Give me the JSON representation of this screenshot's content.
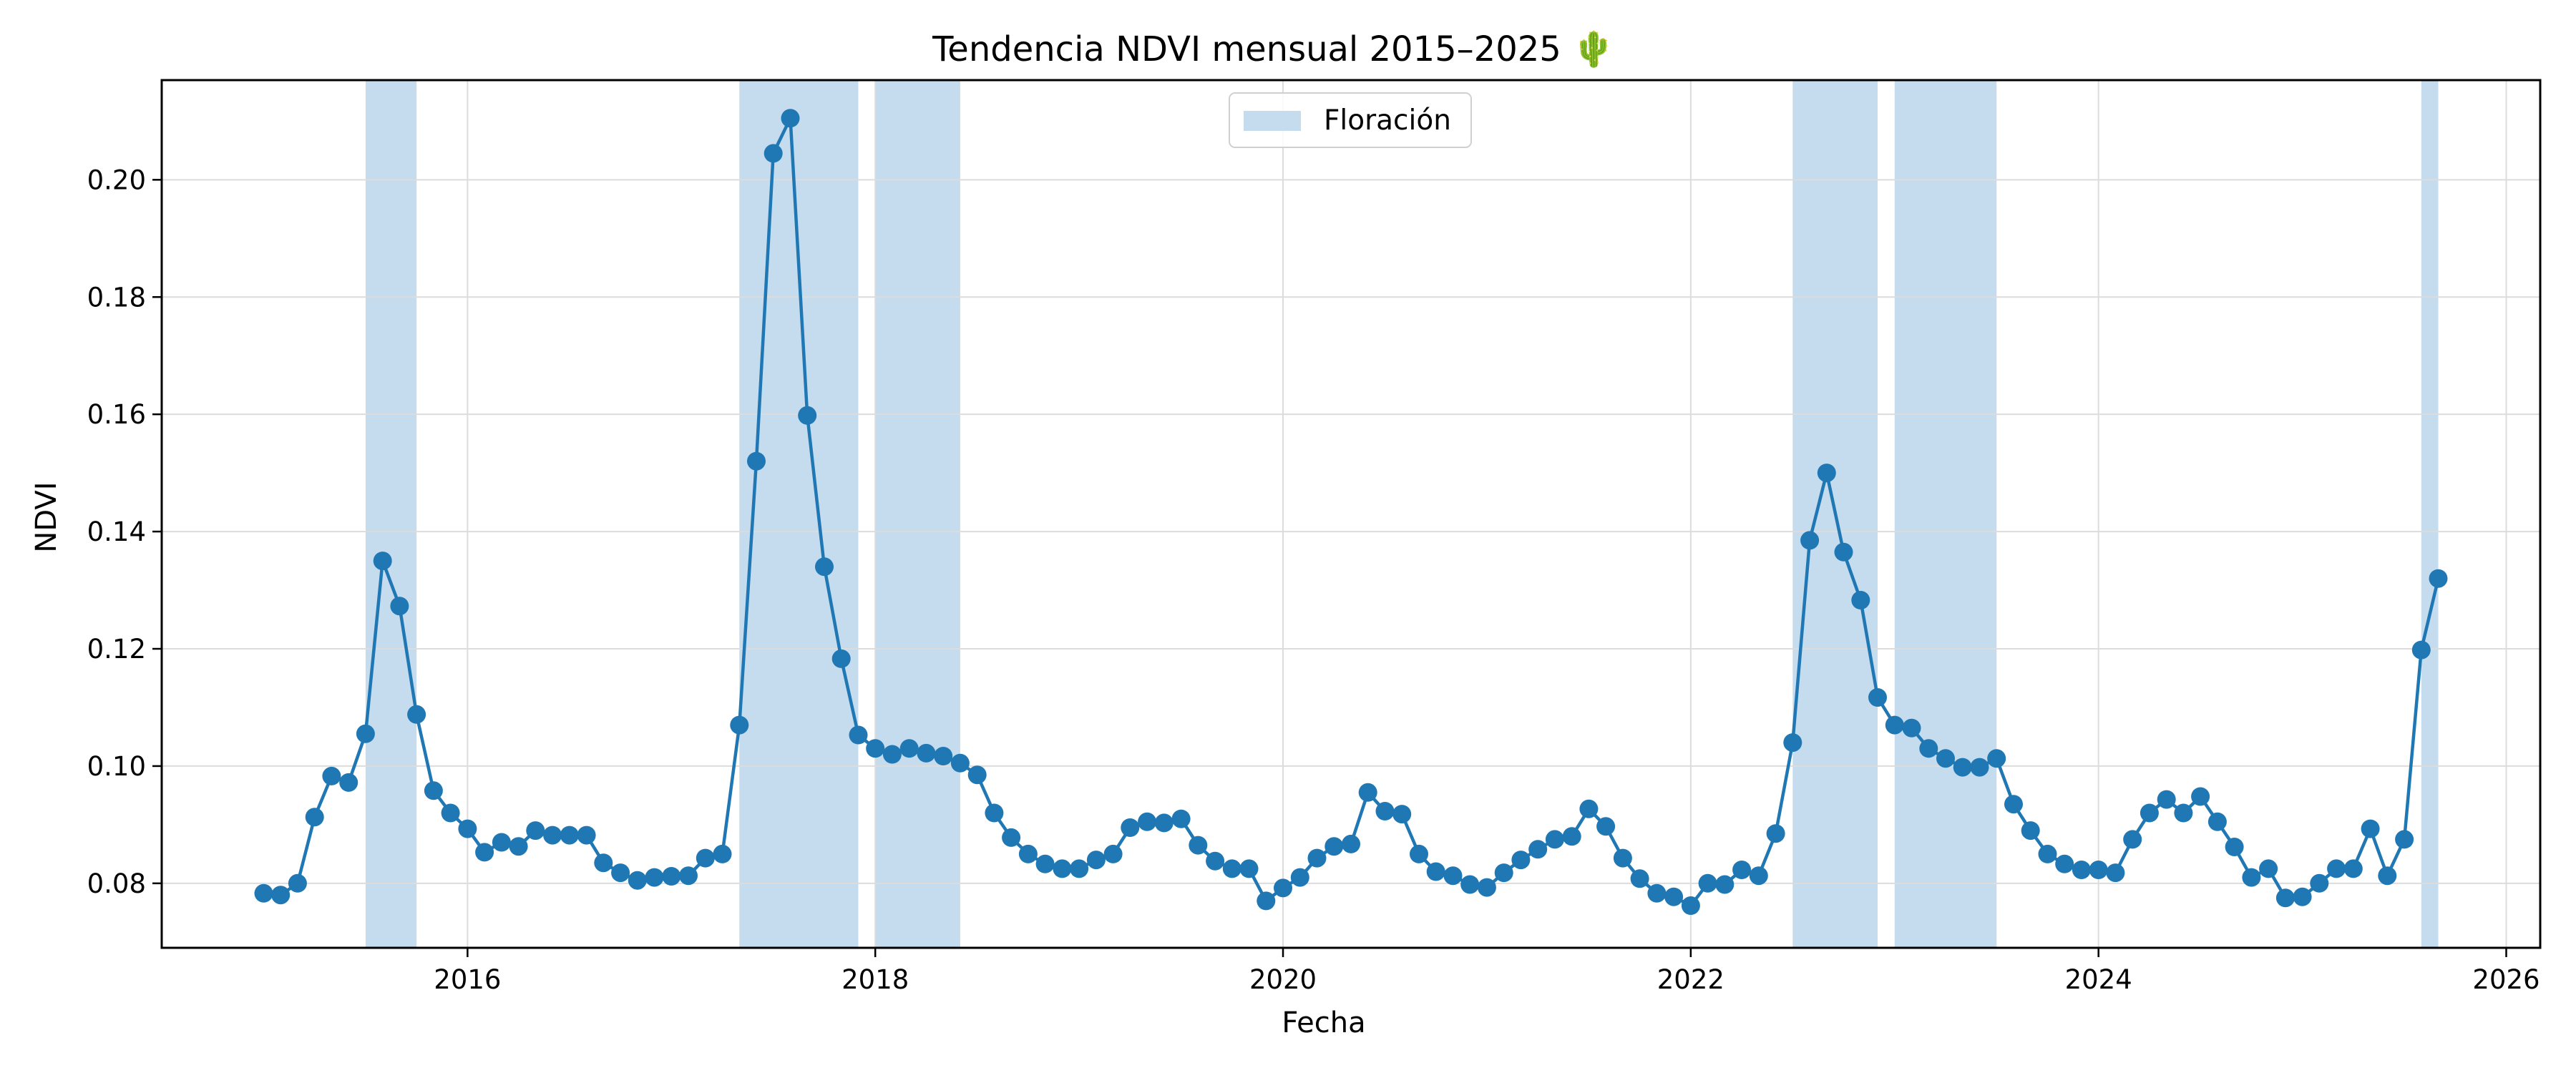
{
  "chart_data": {
    "type": "line",
    "title": "Tendencia NDVI mensual 2015–2025 🌵",
    "xlabel": "Fecha",
    "ylabel": "NDVI",
    "x_start": "2015-01",
    "x_step": "1 month",
    "xlim": [
      "2014-07",
      "2026-03"
    ],
    "ylim": [
      0.069,
      0.217
    ],
    "x_ticks": [
      "2016",
      "2018",
      "2020",
      "2022",
      "2024",
      "2026"
    ],
    "y_ticks": [
      "0.08",
      "0.10",
      "0.12",
      "0.14",
      "0.16",
      "0.18",
      "0.20"
    ],
    "grid": true,
    "legend_position": "top-center",
    "series": [
      {
        "color": "#1f77b4",
        "values": [
          0.0783,
          0.078,
          0.08,
          0.0913,
          0.0983,
          0.0972,
          0.1055,
          0.135,
          0.1273,
          0.1088,
          0.0958,
          0.092,
          0.0893,
          0.0853,
          0.087,
          0.0863,
          0.089,
          0.0882,
          0.0882,
          0.0882,
          0.0835,
          0.0818,
          0.0805,
          0.081,
          0.0812,
          0.0813,
          0.0843,
          0.085,
          0.107,
          0.152,
          0.2045,
          0.2105,
          0.1598,
          0.134,
          0.1183,
          0.1053,
          0.103,
          0.102,
          0.103,
          0.1022,
          0.1017,
          0.1005,
          0.0985,
          0.092,
          0.0878,
          0.085,
          0.0833,
          0.0825,
          0.0825,
          0.084,
          0.085,
          0.0895,
          0.0905,
          0.0903,
          0.091,
          0.0865,
          0.0838,
          0.0825,
          0.0825,
          0.077,
          0.0792,
          0.081,
          0.0843,
          0.0863,
          0.0867,
          0.0955,
          0.0923,
          0.0918,
          0.085,
          0.082,
          0.0813,
          0.0798,
          0.0793,
          0.0818,
          0.084,
          0.0858,
          0.0875,
          0.088,
          0.0927,
          0.0897,
          0.0843,
          0.0808,
          0.0783,
          0.0777,
          0.0762,
          0.08,
          0.0798,
          0.0823,
          0.0813,
          0.0885,
          0.104,
          0.1385,
          0.15,
          0.1365,
          0.1283,
          0.1117,
          0.107,
          0.1065,
          0.103,
          0.1013,
          0.0998,
          0.0998,
          0.1013,
          0.0935,
          0.089,
          0.085,
          0.0833,
          0.0823,
          0.0823,
          0.0818,
          0.0875,
          0.092,
          0.0943,
          0.092,
          0.0948,
          0.0905,
          0.0862,
          0.081,
          0.0825,
          0.0775,
          0.0777,
          0.08,
          0.0825,
          0.0825,
          0.0893,
          0.0813,
          0.0875,
          0.1198,
          0.132
        ]
      }
    ],
    "bands": {
      "label": "Floración",
      "color": "#c5dbee",
      "ranges": [
        [
          "2015-07",
          "2015-10"
        ],
        [
          "2017-05",
          "2017-12"
        ],
        [
          "2018-01",
          "2018-06"
        ],
        [
          "2022-07",
          "2022-12"
        ],
        [
          "2023-01",
          "2023-07"
        ],
        [
          "2025-08",
          "2025-09"
        ]
      ]
    }
  }
}
